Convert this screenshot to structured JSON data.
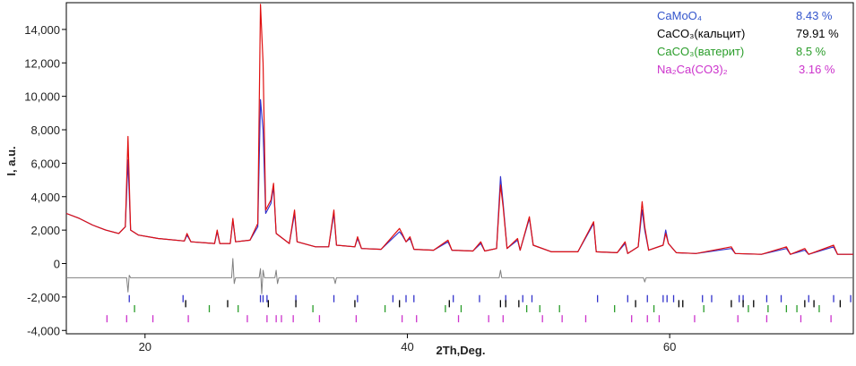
{
  "chart_data": {
    "type": "line",
    "title": "",
    "xlabel": "2Th,Deg.",
    "ylabel": "I, a.u.",
    "xlim": [
      14,
      74
    ],
    "ylim": [
      -4200,
      15600
    ],
    "grid": false,
    "x_ticks": [
      {
        "value": 20,
        "label": "20"
      },
      {
        "value": 40,
        "label": "40"
      },
      {
        "value": 60,
        "label": "60"
      }
    ],
    "y_ticks": [
      {
        "value": 14000,
        "label": "14,000"
      },
      {
        "value": 12000,
        "label": "12,000"
      },
      {
        "value": 10000,
        "label": "10,000"
      },
      {
        "value": 8000,
        "label": "8,000"
      },
      {
        "value": 6000,
        "label": "6,000"
      },
      {
        "value": 4000,
        "label": "4,000"
      },
      {
        "value": 2000,
        "label": "2,000"
      },
      {
        "value": 0,
        "label": "0"
      },
      {
        "value": -2000,
        "label": "-2,000"
      },
      {
        "value": -4000,
        "label": "-4,000"
      }
    ],
    "series": [
      {
        "role": "observed",
        "color": "#3333cc",
        "points": [
          [
            14,
            3000
          ],
          [
            15,
            2700
          ],
          [
            16,
            2300
          ],
          [
            17,
            2000
          ],
          [
            18,
            1800
          ],
          [
            18.5,
            2200
          ],
          [
            18.7,
            6200
          ],
          [
            18.9,
            2000
          ],
          [
            19.5,
            1700
          ],
          [
            21,
            1500
          ],
          [
            23,
            1350
          ],
          [
            23.2,
            1700
          ],
          [
            23.5,
            1300
          ],
          [
            25.3,
            1200
          ],
          [
            25.5,
            1900
          ],
          [
            25.7,
            1200
          ],
          [
            26.5,
            1200
          ],
          [
            26.7,
            2600
          ],
          [
            26.9,
            1300
          ],
          [
            28,
            1400
          ],
          [
            28.6,
            2200
          ],
          [
            28.8,
            9800
          ],
          [
            29.0,
            8000
          ],
          [
            29.2,
            3000
          ],
          [
            29.6,
            3600
          ],
          [
            29.8,
            4600
          ],
          [
            30,
            1800
          ],
          [
            31,
            1200
          ],
          [
            31.4,
            3000
          ],
          [
            31.6,
            1300
          ],
          [
            33,
            1000
          ],
          [
            34,
            1000
          ],
          [
            34.4,
            3000
          ],
          [
            34.6,
            1100
          ],
          [
            36,
            1000
          ],
          [
            36.2,
            1500
          ],
          [
            36.5,
            900
          ],
          [
            38,
            850
          ],
          [
            39.4,
            1900
          ],
          [
            39.6,
            1700
          ],
          [
            39.9,
            1300
          ],
          [
            40.2,
            1500
          ],
          [
            40.5,
            850
          ],
          [
            42,
            800
          ],
          [
            43.1,
            1300
          ],
          [
            43.4,
            800
          ],
          [
            45,
            750
          ],
          [
            45.6,
            1200
          ],
          [
            45.9,
            750
          ],
          [
            46.8,
            900
          ],
          [
            47.1,
            5200
          ],
          [
            47.3,
            3600
          ],
          [
            47.6,
            900
          ],
          [
            48.4,
            1400
          ],
          [
            48.6,
            800
          ],
          [
            49.3,
            2700
          ],
          [
            49.6,
            1100
          ],
          [
            51,
            700
          ],
          [
            53,
            700
          ],
          [
            54.2,
            2400
          ],
          [
            54.4,
            700
          ],
          [
            56,
            650
          ],
          [
            56.6,
            1200
          ],
          [
            56.8,
            600
          ],
          [
            57.6,
            1000
          ],
          [
            57.9,
            3200
          ],
          [
            58.1,
            2000
          ],
          [
            58.4,
            800
          ],
          [
            59.5,
            1100
          ],
          [
            59.7,
            2000
          ],
          [
            59.9,
            1200
          ],
          [
            60.5,
            650
          ],
          [
            62,
            600
          ],
          [
            64.7,
            900
          ],
          [
            65,
            600
          ],
          [
            67,
            550
          ],
          [
            68.9,
            900
          ],
          [
            69.2,
            550
          ],
          [
            70.3,
            800
          ],
          [
            70.6,
            550
          ],
          [
            72.5,
            1000
          ],
          [
            72.8,
            550
          ],
          [
            74,
            550
          ]
        ]
      },
      {
        "role": "calculated",
        "color": "#e01010",
        "points": [
          [
            14,
            3000
          ],
          [
            15,
            2700
          ],
          [
            16,
            2300
          ],
          [
            17,
            2000
          ],
          [
            18,
            1800
          ],
          [
            18.5,
            2200
          ],
          [
            18.7,
            7600
          ],
          [
            18.9,
            2000
          ],
          [
            19.5,
            1700
          ],
          [
            21,
            1500
          ],
          [
            23,
            1350
          ],
          [
            23.2,
            1800
          ],
          [
            23.5,
            1300
          ],
          [
            25.3,
            1200
          ],
          [
            25.5,
            2000
          ],
          [
            25.7,
            1200
          ],
          [
            26.5,
            1200
          ],
          [
            26.7,
            2700
          ],
          [
            26.9,
            1300
          ],
          [
            28,
            1400
          ],
          [
            28.6,
            2400
          ],
          [
            28.8,
            15500
          ],
          [
            29.0,
            12000
          ],
          [
            29.2,
            3200
          ],
          [
            29.6,
            3800
          ],
          [
            29.8,
            4800
          ],
          [
            30,
            1800
          ],
          [
            31,
            1200
          ],
          [
            31.4,
            3200
          ],
          [
            31.6,
            1300
          ],
          [
            33,
            1000
          ],
          [
            34,
            1000
          ],
          [
            34.4,
            3200
          ],
          [
            34.6,
            1100
          ],
          [
            36,
            1000
          ],
          [
            36.2,
            1600
          ],
          [
            36.5,
            900
          ],
          [
            38,
            850
          ],
          [
            39.4,
            2100
          ],
          [
            39.6,
            1800
          ],
          [
            39.9,
            1300
          ],
          [
            40.2,
            1600
          ],
          [
            40.5,
            850
          ],
          [
            42,
            800
          ],
          [
            43.1,
            1400
          ],
          [
            43.4,
            800
          ],
          [
            45,
            750
          ],
          [
            45.6,
            1300
          ],
          [
            45.9,
            750
          ],
          [
            46.8,
            900
          ],
          [
            47.1,
            4700
          ],
          [
            47.3,
            3400
          ],
          [
            47.6,
            900
          ],
          [
            48.4,
            1500
          ],
          [
            48.6,
            800
          ],
          [
            49.3,
            2800
          ],
          [
            49.6,
            1100
          ],
          [
            51,
            700
          ],
          [
            53,
            700
          ],
          [
            54.2,
            2500
          ],
          [
            54.4,
            700
          ],
          [
            56,
            650
          ],
          [
            56.6,
            1300
          ],
          [
            56.8,
            600
          ],
          [
            57.6,
            1000
          ],
          [
            57.9,
            3700
          ],
          [
            58.1,
            2200
          ],
          [
            58.4,
            800
          ],
          [
            59.5,
            1100
          ],
          [
            59.7,
            1800
          ],
          [
            59.9,
            1200
          ],
          [
            60.5,
            650
          ],
          [
            62,
            600
          ],
          [
            64.7,
            1000
          ],
          [
            65,
            600
          ],
          [
            67,
            550
          ],
          [
            68.9,
            1000
          ],
          [
            69.2,
            550
          ],
          [
            70.3,
            900
          ],
          [
            70.6,
            550
          ],
          [
            72.5,
            1100
          ],
          [
            72.8,
            550
          ],
          [
            74,
            550
          ]
        ]
      },
      {
        "role": "difference",
        "color": "#808080",
        "points": [
          [
            14,
            -850
          ],
          [
            18.6,
            -850
          ],
          [
            18.7,
            -1700
          ],
          [
            18.8,
            -700
          ],
          [
            18.9,
            -850
          ],
          [
            26.6,
            -850
          ],
          [
            26.7,
            300
          ],
          [
            26.8,
            -1200
          ],
          [
            26.9,
            -850
          ],
          [
            28.7,
            -850
          ],
          [
            28.8,
            -300
          ],
          [
            28.9,
            -1800
          ],
          [
            29.0,
            -400
          ],
          [
            29.1,
            -850
          ],
          [
            29.9,
            -850
          ],
          [
            30,
            -400
          ],
          [
            30.1,
            -1200
          ],
          [
            30.2,
            -850
          ],
          [
            34.4,
            -850
          ],
          [
            34.5,
            -1200
          ],
          [
            34.6,
            -850
          ],
          [
            47,
            -850
          ],
          [
            47.1,
            -400
          ],
          [
            47.2,
            -850
          ],
          [
            58,
            -850
          ],
          [
            58.1,
            -1100
          ],
          [
            58.2,
            -850
          ],
          [
            74,
            -850
          ]
        ]
      }
    ],
    "reflections": [
      {
        "y": -2100,
        "color": "#3333cc",
        "x": [
          18.8,
          22.9,
          28.8,
          29.0,
          29.3,
          31.5,
          34.4,
          36.2,
          38.9,
          39.9,
          40.5,
          43.5,
          45.5,
          47.5,
          48.8,
          49.5,
          54.5,
          56.8,
          58.3,
          59.5,
          59.8,
          60.3,
          62.5,
          63.2,
          65.3,
          65.6,
          67.4,
          68.5,
          70.6,
          72.5,
          73.8
        ]
      },
      {
        "y": -2400,
        "color": "#000000",
        "x": [
          23.1,
          26.3,
          29.4,
          31.5,
          36.0,
          39.4,
          43.2,
          47.1,
          47.5,
          48.5,
          57.4,
          60.7,
          61.0,
          64.7,
          65.6,
          66.4,
          70.3,
          71.0,
          73.0
        ]
      },
      {
        "y": -2700,
        "color": "#2a9d2a",
        "x": [
          19.2,
          24.9,
          27.1,
          32.8,
          38.3,
          42.9,
          44.1,
          49.1,
          50.1,
          51.6,
          55.8,
          58.8,
          62.6,
          66.0,
          67.5,
          68.9,
          69.7,
          71.4
        ]
      },
      {
        "y": -3300,
        "color": "#cc33cc",
        "x": [
          17.1,
          18.6,
          20.6,
          23.3,
          27.8,
          29.3,
          30.0,
          30.4,
          31.3,
          33.3,
          36.1,
          39.6,
          40.7,
          43.9,
          46.2,
          47.3,
          50.3,
          51.8,
          53.6,
          57.1,
          58.3,
          59.2,
          61.9,
          65.2,
          67.4,
          70.0,
          72.3
        ]
      }
    ],
    "legend": {
      "placement": "top-right",
      "entries": [
        {
          "label": "CaMoO₄",
          "value": "8.43 %",
          "color": "#3355cc"
        },
        {
          "label": "CaCO₃(кальцит)",
          "value": "79.91 %",
          "color": "#000000"
        },
        {
          "label": "CaCO₃(ватерит)",
          "value": "8.5 %",
          "color": "#2a9d2a"
        },
        {
          "label": "Na₂Ca(CO3)₂",
          "value": "3.16 %",
          "color": "#cc33cc"
        }
      ]
    }
  }
}
